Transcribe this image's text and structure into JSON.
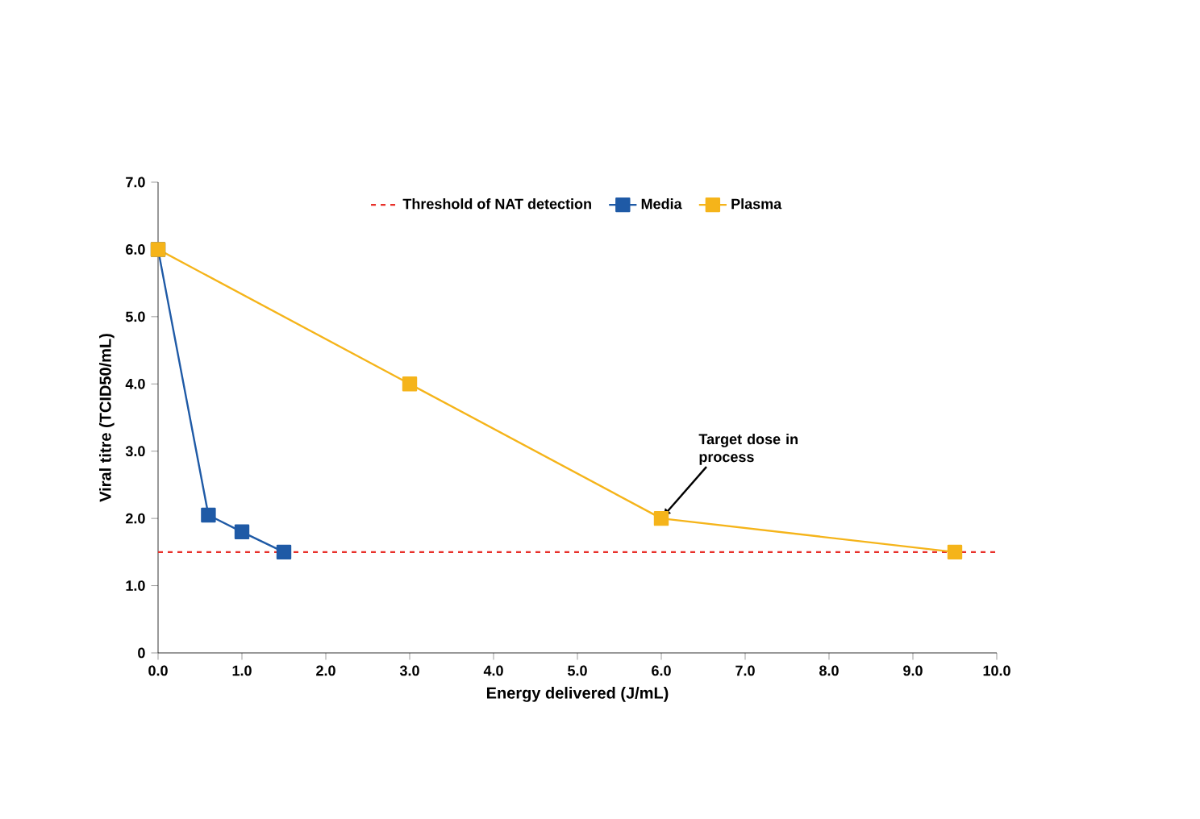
{
  "chart_data": {
    "type": "line",
    "xlabel": "Energy delivered (J/mL)",
    "ylabel": "Viral titre (TCID50/mL)",
    "series": [
      {
        "name": "Media",
        "color": "#1f5aa6",
        "x": [
          0,
          0.6,
          1.0,
          1.5
        ],
        "values": [
          6.0,
          2.05,
          1.8,
          1.5
        ]
      },
      {
        "name": "Plasma",
        "color": "#f5b41a",
        "x": [
          0,
          3.0,
          6.0,
          9.5
        ],
        "values": [
          6.0,
          4.0,
          2.0,
          1.5
        ]
      }
    ],
    "ref_lines": [
      {
        "axis": "y",
        "value": 1.5,
        "label": "Threshold of NAT detection",
        "color": "#e8302a",
        "line_style": "dashed"
      }
    ],
    "annotations": [
      {
        "text": "Target dose in process",
        "x": 6.0,
        "y": 2.0
      }
    ],
    "xlim": [
      0,
      10
    ],
    "ylim": [
      0,
      7
    ],
    "xticks": [
      {
        "value": 0,
        "label": "0.0"
      },
      {
        "value": 1,
        "label": "1.0"
      },
      {
        "value": 2,
        "label": "2.0"
      },
      {
        "value": 3,
        "label": "3.0"
      },
      {
        "value": 4,
        "label": "4.0"
      },
      {
        "value": 5,
        "label": "5.0"
      },
      {
        "value": 6,
        "label": "6.0"
      },
      {
        "value": 7,
        "label": "7.0"
      },
      {
        "value": 8,
        "label": "8.0"
      },
      {
        "value": 9,
        "label": "9.0"
      },
      {
        "value": 10,
        "label": "10.0"
      }
    ],
    "yticks": [
      0,
      {
        "value": 1,
        "label": "1.0"
      },
      {
        "value": 2,
        "label": "2.0"
      },
      {
        "value": 3,
        "label": "3.0"
      },
      {
        "value": 4,
        "label": "4.0"
      },
      {
        "value": 5,
        "label": "5.0"
      },
      {
        "value": 6,
        "label": "6.0"
      },
      {
        "value": 7,
        "label": "7.0"
      }
    ],
    "legend": "top",
    "marker": "square",
    "line_style": "solid",
    "grid": false
  }
}
